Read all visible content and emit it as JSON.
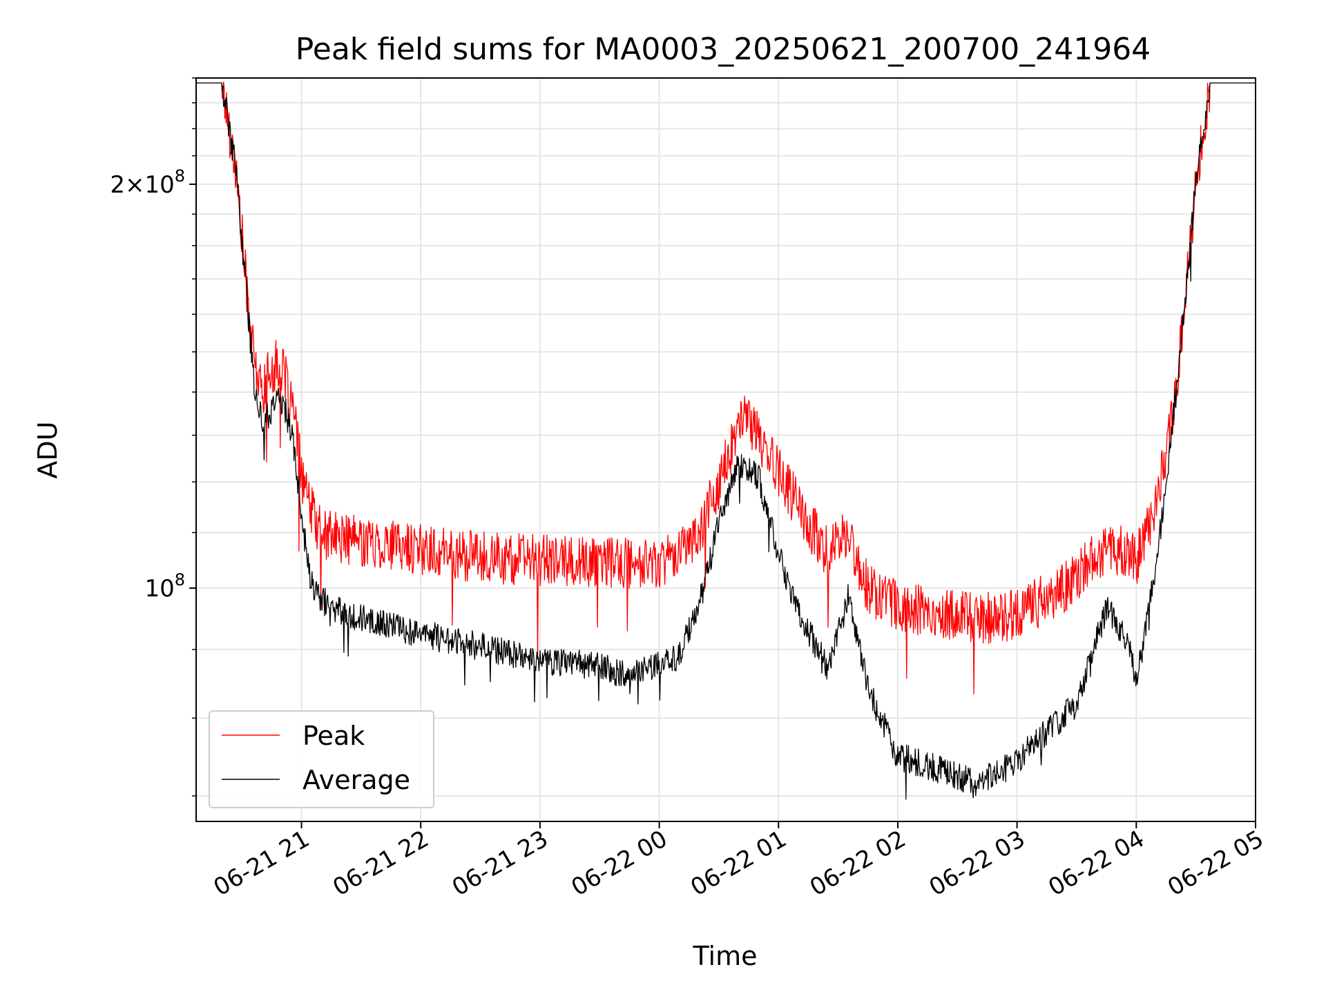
{
  "chart_data": {
    "type": "line",
    "title": "Peak field sums for MA0003_20250621_200700_241964",
    "xlabel": "Time",
    "ylabel": "ADU",
    "yscale": "log",
    "grid": true,
    "legend_position": "lower-left",
    "x_ticks": [
      "06-21 21",
      "06-21 22",
      "06-21 23",
      "06-22 00",
      "06-22 01",
      "06-22 02",
      "06-22 03",
      "06-22 04",
      "06-22 05"
    ],
    "y_ticks": [
      {
        "value": 100000000,
        "mantissa": "",
        "exponent": "8"
      },
      {
        "value": 200000000,
        "mantissa": "2",
        "exponent": "8"
      }
    ],
    "xlim": [
      "2025-06-21 20:07",
      "2025-06-22 05:00"
    ],
    "ylim": [
      67000000,
      240000000
    ],
    "series": [
      {
        "name": "Peak",
        "color": "#ff0000",
        "x": [
          "2025-06-21 20:07",
          "2025-06-21 20:20",
          "2025-06-21 20:27",
          "2025-06-21 20:32",
          "2025-06-21 20:36",
          "2025-06-21 20:40",
          "2025-06-21 20:44",
          "2025-06-21 20:48",
          "2025-06-21 20:52",
          "2025-06-21 20:56",
          "2025-06-21 21:00",
          "2025-06-21 21:04",
          "2025-06-21 21:10",
          "2025-06-21 21:20",
          "2025-06-21 21:40",
          "2025-06-21 22:00",
          "2025-06-21 22:30",
          "2025-06-21 23:00",
          "2025-06-21 23:30",
          "2025-06-22 00:00",
          "2025-06-22 00:20",
          "2025-06-22 00:30",
          "2025-06-22 00:40",
          "2025-06-22 00:45",
          "2025-06-22 00:50",
          "2025-06-22 01:00",
          "2025-06-22 01:15",
          "2025-06-22 01:25",
          "2025-06-22 01:35",
          "2025-06-22 01:45",
          "2025-06-22 02:00",
          "2025-06-22 02:30",
          "2025-06-22 02:50",
          "2025-06-22 03:00",
          "2025-06-22 03:20",
          "2025-06-22 03:40",
          "2025-06-22 03:50",
          "2025-06-22 04:00",
          "2025-06-22 04:10",
          "2025-06-22 04:20",
          "2025-06-22 04:30",
          "2025-06-22 04:37",
          "2025-06-22 05:00"
        ],
        "y": [
          238000000,
          238000000,
          205000000,
          170000000,
          148000000,
          140000000,
          145000000,
          147000000,
          143000000,
          135000000,
          122000000,
          115000000,
          110000000,
          109000000,
          108000000,
          107000000,
          105500000,
          105000000,
          104500000,
          104500000,
          110000000,
          120000000,
          132000000,
          134000000,
          130000000,
          122000000,
          112000000,
          106000000,
          110000000,
          100000000,
          97000000,
          95500000,
          95000000,
          96000000,
          99000000,
          106000000,
          107000000,
          105000000,
          115000000,
          140000000,
          200000000,
          238000000,
          238000000
        ]
      },
      {
        "name": "Average",
        "color": "#000000",
        "x": [
          "2025-06-21 20:07",
          "2025-06-21 20:20",
          "2025-06-21 20:27",
          "2025-06-21 20:32",
          "2025-06-21 20:36",
          "2025-06-21 20:40",
          "2025-06-21 20:44",
          "2025-06-21 20:48",
          "2025-06-21 20:52",
          "2025-06-21 20:56",
          "2025-06-21 21:00",
          "2025-06-21 21:04",
          "2025-06-21 21:08",
          "2025-06-21 21:15",
          "2025-06-21 21:30",
          "2025-06-21 22:00",
          "2025-06-21 22:30",
          "2025-06-21 23:00",
          "2025-06-21 23:30",
          "2025-06-21 23:45",
          "2025-06-22 00:10",
          "2025-06-22 00:20",
          "2025-06-22 00:30",
          "2025-06-22 00:40",
          "2025-06-22 00:50",
          "2025-06-22 01:00",
          "2025-06-22 01:10",
          "2025-06-22 01:25",
          "2025-06-22 01:35",
          "2025-06-22 01:45",
          "2025-06-22 02:00",
          "2025-06-22 02:30",
          "2025-06-22 02:40",
          "2025-06-22 03:00",
          "2025-06-22 03:30",
          "2025-06-22 03:45",
          "2025-06-22 03:55",
          "2025-06-22 04:00",
          "2025-06-22 04:10",
          "2025-06-22 04:20",
          "2025-06-22 04:30",
          "2025-06-22 04:37",
          "2025-06-22 05:00"
        ],
        "y": [
          238000000,
          238000000,
          205000000,
          168000000,
          143000000,
          133000000,
          135000000,
          139000000,
          136000000,
          128000000,
          114000000,
          102000000,
          98500000,
          97000000,
          95000000,
          92500000,
          90500000,
          88500000,
          87500000,
          86000000,
          89000000,
          97000000,
          112000000,
          124000000,
          121000000,
          106000000,
          96000000,
          87000000,
          98500000,
          84000000,
          75000000,
          72500000,
          71500000,
          74500000,
          82000000,
          96500000,
          92000000,
          85000000,
          104000000,
          140000000,
          200000000,
          238000000,
          238000000
        ]
      }
    ]
  }
}
